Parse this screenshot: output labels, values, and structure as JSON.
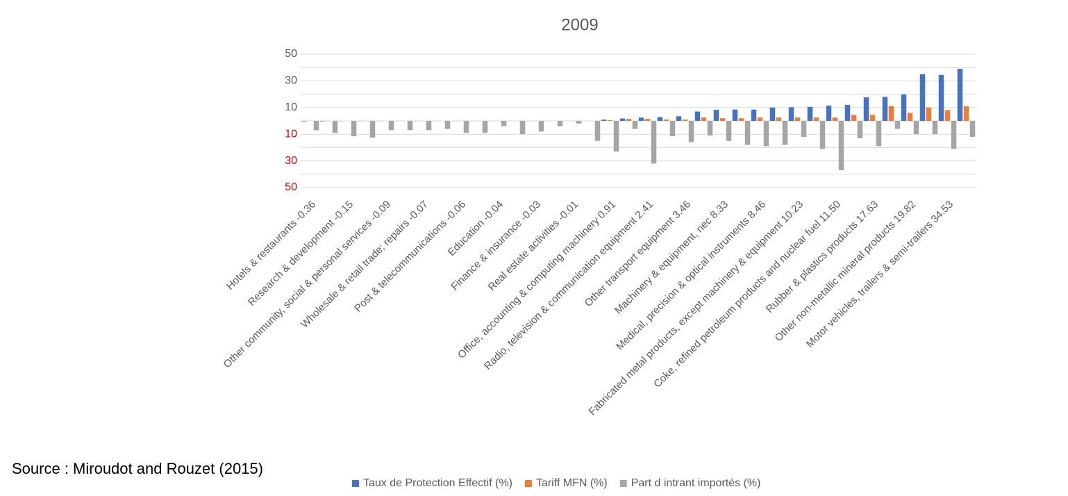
{
  "chart_data": {
    "type": "bar",
    "title": "2009",
    "source": "Source : Miroudot and Rouzet (2015)",
    "categories": [
      "Hotels & restaurants -0.36",
      null,
      "Research & development -0.15",
      null,
      "Other community, social & personal services -0.09",
      null,
      "Wholesale & retail trade; repairs -0.07",
      null,
      "Post & telecommunications -0.06",
      null,
      "Education -0.04",
      null,
      "Finance & insurance -0.03",
      null,
      "Real estate activities -0.01",
      null,
      "Office, accounting & computing machinery 0.91",
      null,
      "Radio, television & communication equipment 2.41",
      null,
      "Other transport equipment 3.46",
      null,
      "Machinery & equipment, nec 8.33",
      null,
      "Medical, precision & optical instruments 8.46",
      null,
      "Fabricated metal products, except machinery & equipment 10.23",
      null,
      "Coke, refined petroleum products and nuclear fuel 11.50",
      null,
      "Rubber & plastics products 17.63",
      null,
      "Other non-metallic mineral products 19.82",
      null,
      "Motor vehicles, trailers & semi-trailers 34.53",
      null
    ],
    "series": [
      {
        "name": "Taux de Protection Effectif (%)",
        "color": "#4472c4",
        "values": [
          -0.36,
          -0.3,
          -0.15,
          -0.1,
          -0.09,
          -0.08,
          -0.07,
          -0.06,
          -0.06,
          -0.05,
          -0.04,
          -0.04,
          -0.03,
          -0.02,
          -0.01,
          -0.01,
          0.91,
          1.8,
          2.41,
          2.8,
          3.46,
          7,
          8.33,
          8.5,
          8.46,
          10,
          10.23,
          10.5,
          11.5,
          12,
          17.63,
          18,
          19.82,
          35,
          34.53,
          39
        ]
      },
      {
        "name": "Tariff MFN (%)",
        "color": "#ed7d31",
        "values": [
          0,
          0,
          0,
          0,
          0,
          0,
          0,
          0,
          0,
          0,
          0,
          0,
          0,
          0,
          0,
          0,
          0.5,
          1.5,
          1.5,
          1,
          1,
          2.5,
          2,
          2,
          2.5,
          2.5,
          2.5,
          2.5,
          2.5,
          4.5,
          4.5,
          11,
          6,
          10,
          8,
          11
        ]
      },
      {
        "name": "Part d intrant importés (%)",
        "color": "#a5a5a5",
        "values": [
          -7,
          -9,
          -11.5,
          -12.5,
          -7,
          -7,
          -7,
          -6,
          -9,
          -9,
          -4,
          -10,
          -8,
          -4,
          -2,
          -15,
          -23,
          -6,
          -32,
          -11.5,
          -16,
          -11,
          -15,
          -18,
          -19,
          -18,
          -12,
          -21,
          -37,
          -13,
          -19,
          -6,
          -10,
          -10,
          -21,
          -12
        ]
      }
    ],
    "ylim": [
      -50,
      50
    ],
    "yticks": [
      50,
      30,
      10,
      {
        "value": -10,
        "label": "10"
      },
      {
        "value": -30,
        "label": "30"
      },
      {
        "value": -50,
        "label": "50"
      }
    ],
    "minor_yticks": [
      40,
      20,
      0,
      -20,
      -40
    ],
    "negative_label_color": "#e00000",
    "grid": true,
    "legend": "bottom"
  }
}
